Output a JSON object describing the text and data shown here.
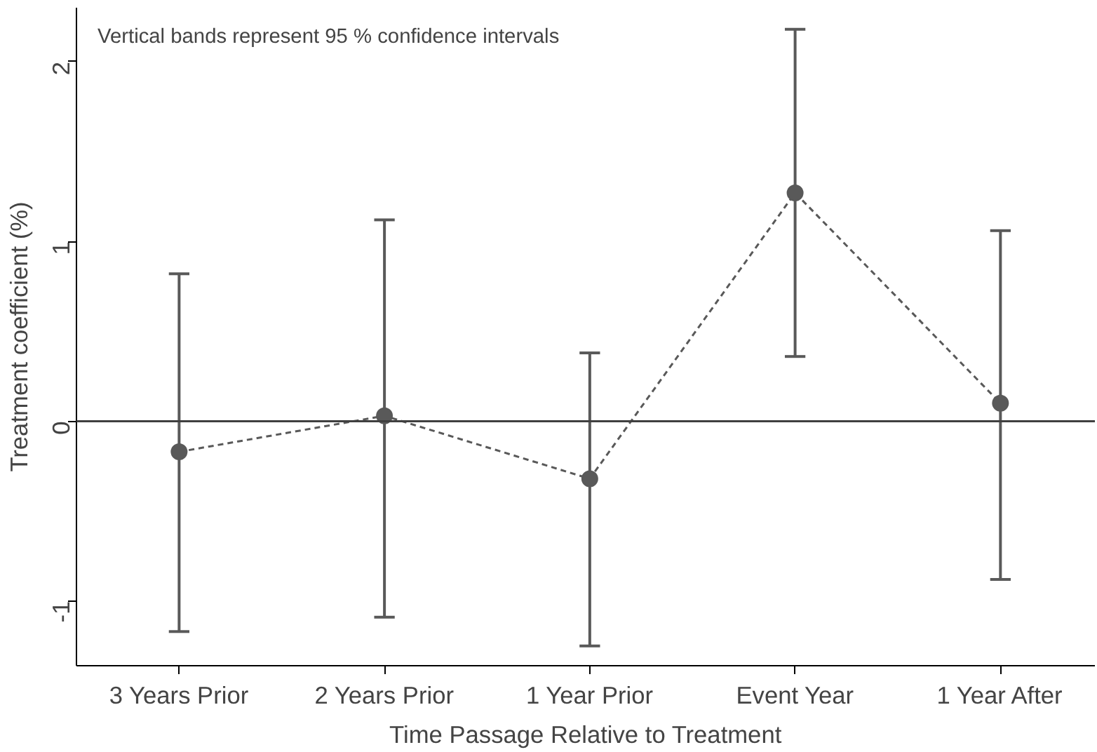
{
  "chart_data": {
    "type": "line",
    "xlabel": "Time Passage Relative to Treatment",
    "ylabel": "Treatment coefficient (%)",
    "categories": [
      "3 Years Prior",
      "2 Years Prior",
      "1 Year Prior",
      "Event Year",
      "1 Year After"
    ],
    "series": [
      {
        "color": "#595959",
        "values": [
          -0.17,
          0.03,
          -0.32,
          1.27,
          0.1
        ],
        "errors": [
          [
            -1.17,
            0.82
          ],
          [
            -1.09,
            1.12
          ],
          [
            -1.25,
            0.38
          ],
          [
            0.36,
            2.18
          ],
          [
            -0.88,
            1.06
          ]
        ]
      }
    ],
    "ylim": [
      -1.36,
      2.3
    ],
    "yticks": [
      -1,
      0,
      1,
      2
    ],
    "ref_lines": [
      {
        "axis": "y",
        "value": 0,
        "color": "#404040"
      }
    ],
    "annotations": [
      "Vertical bands represent 95 % confidence intervals"
    ],
    "marker": "circle",
    "line_style": "dashed",
    "grid": false
  }
}
